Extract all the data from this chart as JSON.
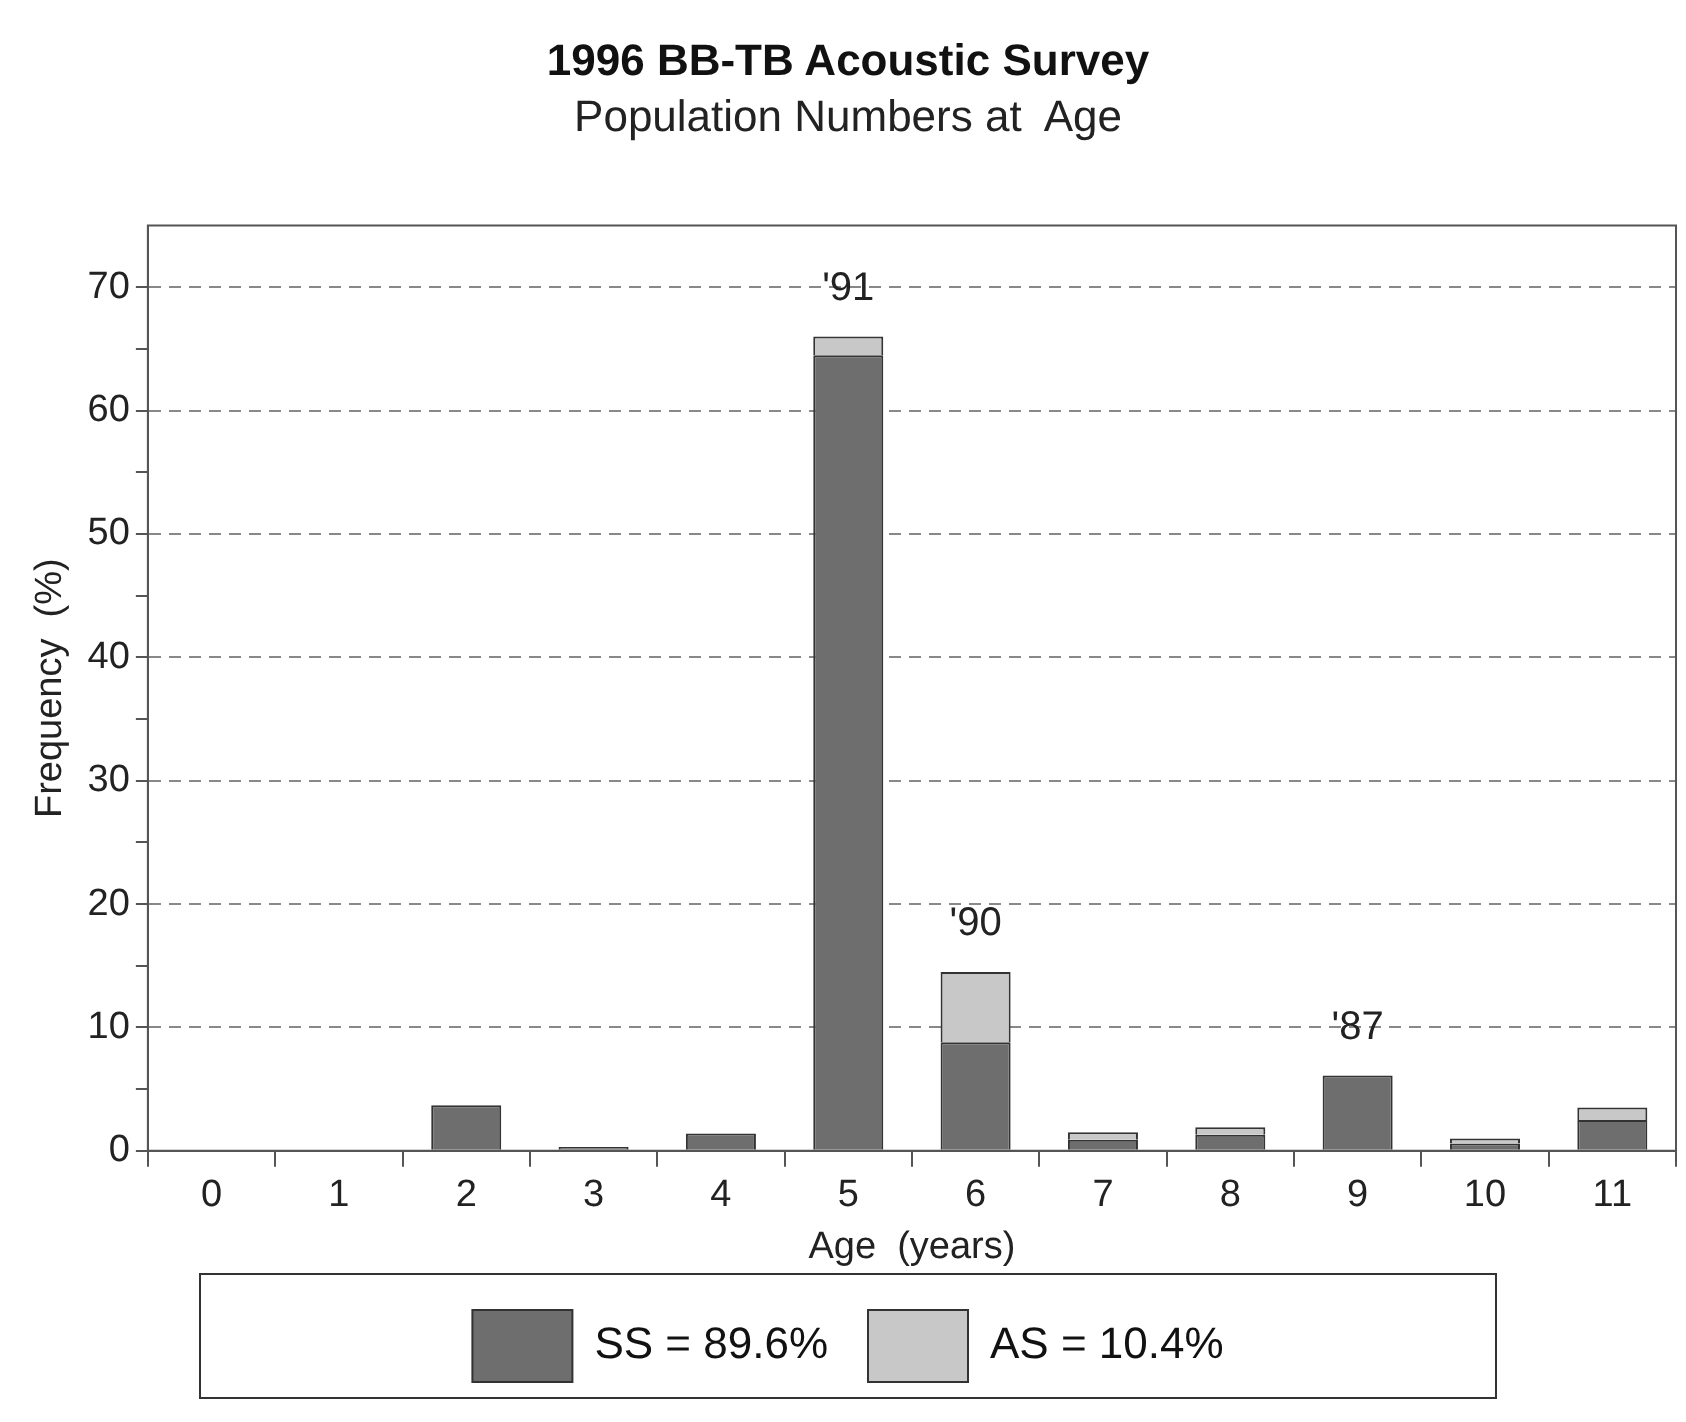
{
  "chart_data": {
    "type": "bar",
    "title": "1996 BB-TB Acoustic Survey",
    "subtitle": "Population Numbers at  Age",
    "xlabel": "Age  (years)",
    "ylabel": "Frequency  (%)",
    "categories": [
      "0",
      "1",
      "2",
      "3",
      "4",
      "5",
      "6",
      "7",
      "8",
      "9",
      "10",
      "11"
    ],
    "stacked": true,
    "series": [
      {
        "name": "SS = 89.6%",
        "color": "#6e6e6e",
        "values": [
          0,
          0,
          3.7,
          0.3,
          1.4,
          64.5,
          8.8,
          0.9,
          1.3,
          6.1,
          0.6,
          2.5
        ]
      },
      {
        "name": "AS = 10.4%",
        "color": "#c8c8c8",
        "values": [
          0,
          0,
          0,
          0,
          0,
          1.5,
          5.7,
          0.6,
          0.6,
          0,
          0.4,
          1.0
        ]
      }
    ],
    "ylim": [
      0,
      75
    ],
    "yticks": [
      0,
      {
        "value": 5,
        "label": null
      },
      10,
      {
        "value": 15,
        "label": null
      },
      20,
      {
        "value": 25,
        "label": null
      },
      30,
      {
        "value": 35,
        "label": null
      },
      40,
      {
        "value": 45,
        "label": null
      },
      50,
      {
        "value": 55,
        "label": null
      },
      60,
      {
        "value": 65,
        "label": null
      },
      70
    ],
    "grid": "y",
    "line_style": "dashed",
    "legend": "bottom",
    "annotations": [
      {
        "text": "'91",
        "x": "5",
        "y": 66.0
      },
      {
        "text": "'90",
        "x": "6",
        "y": 14.5
      },
      {
        "text": "'87",
        "x": "9",
        "y": 6.1
      }
    ]
  }
}
